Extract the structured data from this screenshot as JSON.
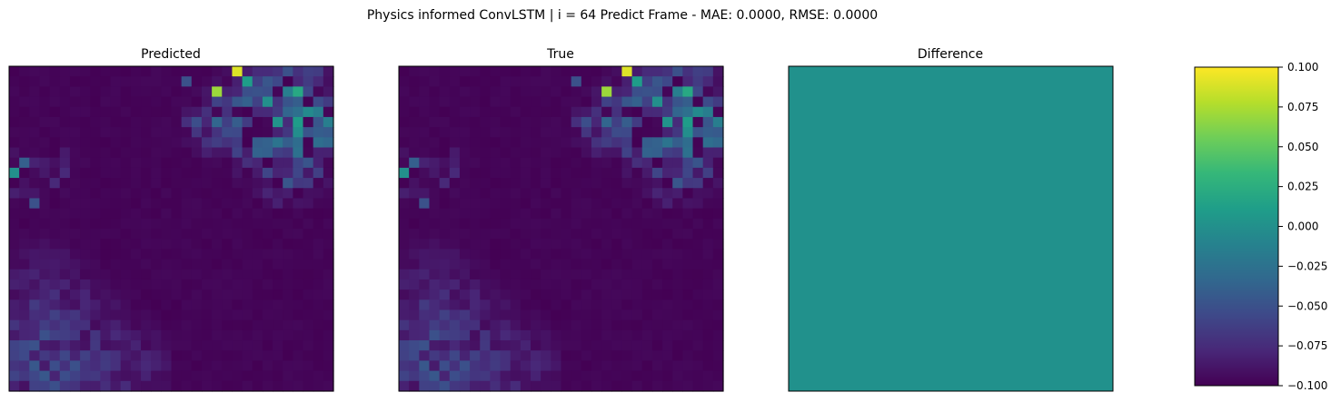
{
  "figure": {
    "suptitle": "Physics informed ConvLSTM | i = 64 Predict Frame - MAE: 0.0000, RMSE: 0.0000"
  },
  "colormap": {
    "name": "viridis",
    "stops": [
      "#440154",
      "#482878",
      "#3e4989",
      "#31688e",
      "#26828e",
      "#1f9e89",
      "#35b779",
      "#6ece58",
      "#b5de2b",
      "#fde725"
    ]
  },
  "chart_data": [
    {
      "type": "heatmap",
      "title": "Predicted",
      "grid_size": [
        32,
        32
      ],
      "axes_ticks": false,
      "description_of_field": "low values over most of frame; brighter speckled patches in top-right corner and bottom-left quadrant"
    },
    {
      "type": "heatmap",
      "title": "True",
      "grid_size": [
        32,
        32
      ],
      "axes_ticks": false
    },
    {
      "type": "heatmap",
      "title": "Difference",
      "grid_size": [
        32,
        32
      ],
      "uniform_value": 0.0,
      "axes_ticks": false
    }
  ],
  "colorbar": {
    "vmin": -0.1,
    "vmax": 0.1,
    "ticks": [
      0.1,
      0.075,
      0.05,
      0.025,
      0.0,
      -0.025,
      -0.05,
      -0.075,
      -0.1
    ],
    "tick_labels": [
      "0.100",
      "0.075",
      "0.050",
      "0.025",
      "0.000",
      "−0.025",
      "−0.050",
      "−0.075",
      "−0.100"
    ]
  }
}
